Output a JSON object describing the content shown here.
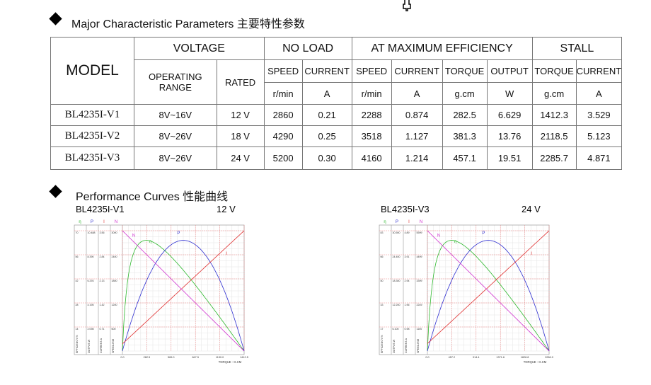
{
  "section1": {
    "title": "Major  Characteristic Parameters  主要特性参数"
  },
  "table": {
    "model": "MODEL",
    "voltage": "VOLTAGE",
    "no_load": "NO  LOAD",
    "max_eff": "AT  MAXIMUM  EFFICIENCY",
    "stall": "STALL",
    "operating_range": "OPERATING RANGE",
    "rated": "RATED",
    "subheads": [
      "SPEED",
      "CURRENT",
      "SPEED",
      "CURRENT",
      "TORQUE",
      "OUTPUT",
      "TORQUE",
      "CURRENT"
    ],
    "units": [
      "r/min",
      "A",
      "r/min",
      "A",
      "g.cm",
      "W",
      "g.cm",
      "A"
    ],
    "rows": [
      [
        "BL4235I-V1",
        "8V~16V",
        "12 V",
        "2860",
        "0.21",
        "2288",
        "0.874",
        "282.5",
        "6.629",
        "1412.3",
        "3.529"
      ],
      [
        "BL4235I-V2",
        "8V~26V",
        "18 V",
        "4290",
        "0.25",
        "3518",
        "1.127",
        "381.3",
        "13.76",
        "2118.5",
        "5.123"
      ],
      [
        "BL4235I-V3",
        "8V~26V",
        "24 V",
        "5200",
        "0.30",
        "4160",
        "1.214",
        "457.1",
        "19.51",
        "2285.7",
        "4.871"
      ]
    ]
  },
  "section2": {
    "title": "Performance Curves  性能曲线"
  },
  "curves": [
    {
      "model": "BL4235I-V1",
      "voltage": "12 V",
      "legend": [
        "η",
        "P",
        "I",
        "N"
      ],
      "axis_labels": [
        "EFFICIENCY-%",
        "OUTPUT-W",
        "CURRENT-A",
        "SPEED-R/M"
      ],
      "scales": [
        [
          "70",
          "10.488",
          "3.56",
          "3000"
        ],
        [
          "56",
          "8.390",
          "2.84",
          "2400"
        ],
        [
          "42",
          "6.293",
          "2.13",
          "1800"
        ],
        [
          "28",
          "4.195",
          "1.42",
          "1200"
        ],
        [
          "14",
          "2.098",
          "0.71",
          "600"
        ]
      ],
      "xticks": [
        "0.0",
        "282.5",
        "565.0",
        "847.5",
        "1130.0",
        "1412.5"
      ],
      "xlabel": "TORQUE - G.CM"
    },
    {
      "model": "BL4235I-V3",
      "voltage": "24 V",
      "legend": [
        "η",
        "P",
        "I",
        "N"
      ],
      "axis_labels": [
        "EFFICIENCY-%",
        "OUTPUT-W",
        "CURRENT-A",
        "SPEED-R/M"
      ],
      "scales": [
        [
          "83",
          "30.500",
          "4.89",
          "5599"
        ],
        [
          "66",
          "24.400",
          "3.91",
          "4499"
        ],
        [
          "50",
          "18.300",
          "2.94",
          "3399"
        ],
        [
          "33",
          "12.200",
          "1.96",
          "2249"
        ],
        [
          "17",
          "6.100",
          "0.98",
          "1100"
        ]
      ],
      "xticks": [
        "0.0",
        "457.2",
        "914.4",
        "1371.6",
        "1828.8",
        "2286.0"
      ],
      "xlabel": "TORQUE - G.CM"
    }
  ]
}
